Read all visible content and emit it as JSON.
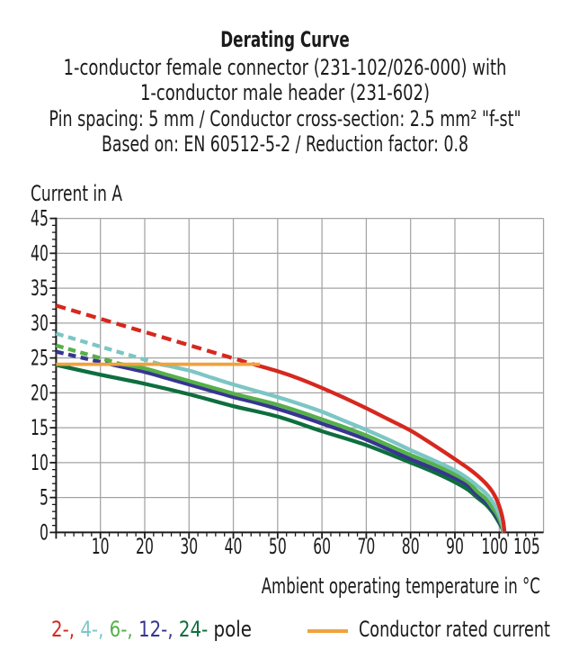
{
  "chart_data": {
    "type": "line",
    "title": "Derating Curve",
    "subtitle_lines": [
      "1-conductor female connector (231-102/026-000) with",
      "1-conductor male header (231-602)",
      "Pin spacing: 5 mm / Conductor cross-section: 2.5 mm² \"f-st\"",
      "Based on: EN 60512-5-2 / Reduction factor: 0.8"
    ],
    "ylabel": "Current in A",
    "xlabel": "Ambient operating temperature in °C",
    "xlim": [
      0,
      110
    ],
    "ylim": [
      0,
      45
    ],
    "x_tick_labels": [
      10,
      20,
      30,
      40,
      50,
      60,
      70,
      80,
      90,
      100,
      105
    ],
    "y_tick_labels": [
      0,
      5,
      10,
      15,
      20,
      25,
      30,
      35,
      40,
      45
    ],
    "x_major_step": 10,
    "x_minor_step": 2,
    "y_major_step": 5,
    "y_minor_step": 1,
    "grid_on": true,
    "grid_color": "#a3a3a3",
    "axis_color": "#1b1b1b",
    "series": [
      {
        "name": "2-pole",
        "legend_label": "2-,",
        "color": "#d6281e",
        "dashed_segment": [
          [
            0,
            32.5
          ],
          [
            44.5,
            24.1
          ]
        ],
        "dash_array": "11 6.5",
        "solid_points": [
          [
            44.5,
            24.1
          ],
          [
            50,
            23.1
          ],
          [
            55,
            22.0
          ],
          [
            60,
            20.7
          ],
          [
            65,
            19.3
          ],
          [
            70,
            17.8
          ],
          [
            75,
            16.2
          ],
          [
            80,
            14.6
          ],
          [
            85,
            12.6
          ],
          [
            90,
            10.5
          ],
          [
            93,
            9.2
          ],
          [
            95,
            8.2
          ],
          [
            97,
            7.0
          ],
          [
            98.5,
            5.8
          ],
          [
            99.5,
            4.6
          ],
          [
            100.3,
            3.2
          ],
          [
            100.9,
            1.6
          ],
          [
            101.2,
            0
          ]
        ]
      },
      {
        "name": "4-pole",
        "legend_label": "4-,",
        "color": "#7cc6c5",
        "dashed_segment": [
          [
            0,
            28.5
          ],
          [
            23.5,
            24.1
          ]
        ],
        "dash_array": "8.5 5.5",
        "solid_points": [
          [
            23.5,
            24.1
          ],
          [
            30,
            23.2
          ],
          [
            35,
            22.2
          ],
          [
            40,
            21.2
          ],
          [
            45,
            20.3
          ],
          [
            50,
            19.4
          ],
          [
            55,
            18.4
          ],
          [
            60,
            17.3
          ],
          [
            65,
            16.0
          ],
          [
            70,
            14.7
          ],
          [
            75,
            13.3
          ],
          [
            80,
            11.8
          ],
          [
            85,
            10.4
          ],
          [
            90,
            8.9
          ],
          [
            93,
            7.7
          ],
          [
            95,
            6.7
          ],
          [
            97,
            5.6
          ],
          [
            98.5,
            4.4
          ],
          [
            99.5,
            3.3
          ],
          [
            100.3,
            2.1
          ],
          [
            100.8,
            1.0
          ],
          [
            101,
            0
          ]
        ]
      },
      {
        "name": "6-pole",
        "legend_label": "6-,",
        "color": "#55b04a",
        "dashed_segment": [
          [
            0,
            26.8
          ],
          [
            14.5,
            24.15
          ]
        ],
        "dash_array": "8.5 5.5",
        "solid_points": [
          [
            14.5,
            24.15
          ],
          [
            20,
            23.5
          ],
          [
            25,
            22.6
          ],
          [
            30,
            21.7
          ],
          [
            35,
            20.8
          ],
          [
            40,
            19.9
          ],
          [
            45,
            19.1
          ],
          [
            50,
            18.3
          ],
          [
            55,
            17.3
          ],
          [
            60,
            16.2
          ],
          [
            65,
            15.1
          ],
          [
            70,
            13.9
          ],
          [
            75,
            12.5
          ],
          [
            80,
            11.1
          ],
          [
            85,
            9.8
          ],
          [
            90,
            8.3
          ],
          [
            93,
            7.2
          ],
          [
            95,
            5.9
          ],
          [
            97,
            4.8
          ],
          [
            98.5,
            3.5
          ],
          [
            99.5,
            2.6
          ],
          [
            100.5,
            1.2
          ],
          [
            101,
            0
          ]
        ]
      },
      {
        "name": "12-pole",
        "legend_label": "12-,",
        "color": "#37358f",
        "dashed_segment": [
          [
            0,
            25.9
          ],
          [
            11.5,
            24.2
          ]
        ],
        "dash_array": "8.5 5.5",
        "solid_points": [
          [
            11.5,
            24.2
          ],
          [
            20,
            23.0
          ],
          [
            25,
            22.1
          ],
          [
            30,
            21.2
          ],
          [
            35,
            20.3
          ],
          [
            40,
            19.4
          ],
          [
            45,
            18.6
          ],
          [
            50,
            17.7
          ],
          [
            55,
            16.7
          ],
          [
            60,
            15.6
          ],
          [
            65,
            14.5
          ],
          [
            70,
            13.3
          ],
          [
            75,
            11.9
          ],
          [
            80,
            10.5
          ],
          [
            85,
            9.2
          ],
          [
            90,
            7.8
          ],
          [
            93,
            6.7
          ],
          [
            95,
            5.4
          ],
          [
            97,
            4.4
          ],
          [
            98.5,
            3.2
          ],
          [
            99.5,
            2.2
          ],
          [
            100.5,
            1.0
          ],
          [
            101,
            0
          ]
        ]
      },
      {
        "name": "24-pole",
        "legend_label": "24-",
        "color": "#0e6e3e",
        "dashed_segment": null,
        "solid_points": [
          [
            0,
            24.0
          ],
          [
            10,
            22.6
          ],
          [
            20,
            21.3
          ],
          [
            30,
            19.8
          ],
          [
            40,
            18.1
          ],
          [
            50,
            16.6
          ],
          [
            60,
            14.5
          ],
          [
            70,
            12.5
          ],
          [
            80,
            10.0
          ],
          [
            85,
            8.7
          ],
          [
            90,
            7.2
          ],
          [
            93,
            6.1
          ],
          [
            95,
            5.0
          ],
          [
            97,
            4.0
          ],
          [
            98.5,
            2.9
          ],
          [
            99.5,
            1.9
          ],
          [
            100.5,
            0.8
          ],
          [
            101,
            0
          ]
        ]
      }
    ],
    "rated_line": {
      "label": "Conductor rated current",
      "color": "#f0a23c",
      "y": 24.1,
      "x_range": [
        0,
        46
      ]
    },
    "legend": {
      "pole_suffix": " pole"
    }
  }
}
